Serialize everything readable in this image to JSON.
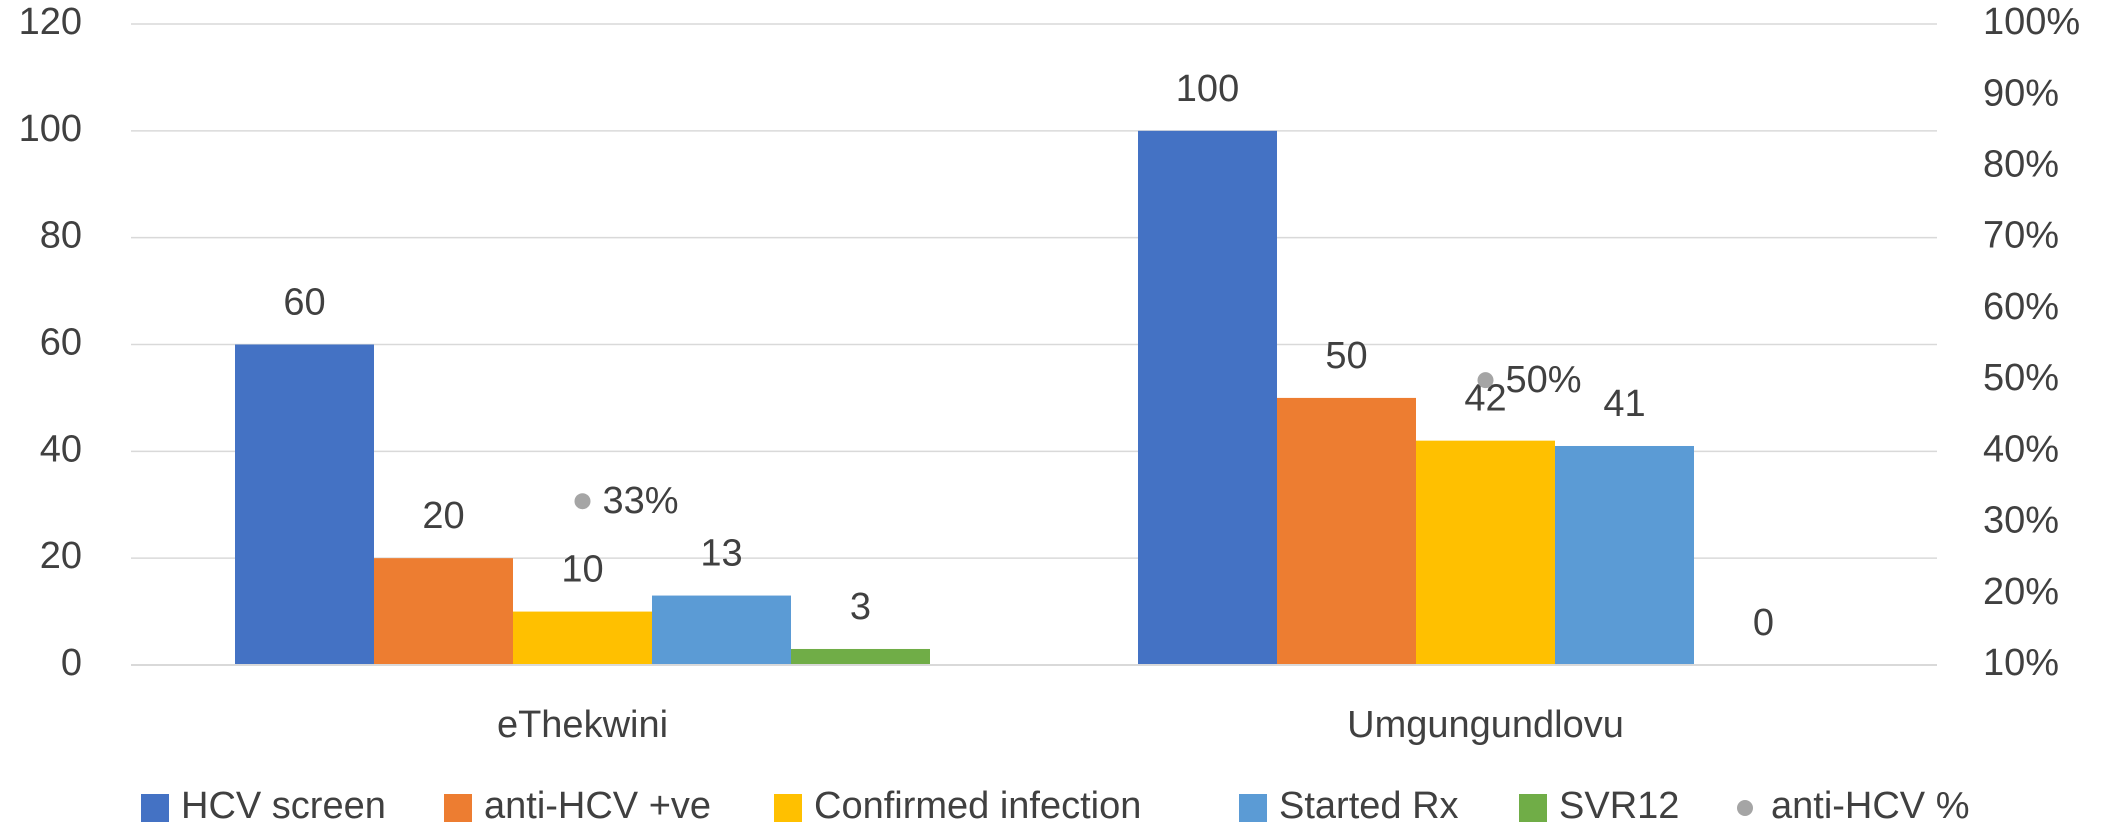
{
  "chart_data": {
    "type": "bar",
    "categories": [
      "eThekwini",
      "Umgungundlovu"
    ],
    "series": [
      {
        "name": "HCV screen",
        "color": "#4472c4",
        "values": [
          60,
          100
        ]
      },
      {
        "name": "anti-HCV +ve",
        "color": "#ed7d31",
        "values": [
          20,
          50
        ]
      },
      {
        "name": "Confirmed infection",
        "color": "#ffc000",
        "values": [
          10,
          42
        ]
      },
      {
        "name": "Started Rx",
        "color": "#5b9bd5",
        "values": [
          13,
          41
        ]
      },
      {
        "name": "SVR12",
        "color": "#70ad47",
        "values": [
          3,
          0
        ]
      },
      {
        "name": "anti-HCV %",
        "color": "#a5a5a5",
        "type": "scatter",
        "axis": "y2",
        "values": [
          33,
          50
        ],
        "value_labels": [
          "33%",
          "50%"
        ]
      }
    ],
    "ylim": [
      0,
      120
    ],
    "yticks": [
      0,
      20,
      40,
      60,
      80,
      100,
      120
    ],
    "y2lim": [
      10,
      100
    ],
    "y2ticks": [
      {
        "value": 10,
        "label": "10%"
      },
      {
        "value": 20,
        "label": "20%"
      },
      {
        "value": 30,
        "label": "30%"
      },
      {
        "value": 40,
        "label": "40%"
      },
      {
        "value": 50,
        "label": "50%"
      },
      {
        "value": 60,
        "label": "60%"
      },
      {
        "value": 70,
        "label": "70%"
      },
      {
        "value": 80,
        "label": "80%"
      },
      {
        "value": 90,
        "label": "90%"
      },
      {
        "value": 100,
        "label": "100%"
      }
    ],
    "grid": true,
    "legend": "bottom"
  }
}
